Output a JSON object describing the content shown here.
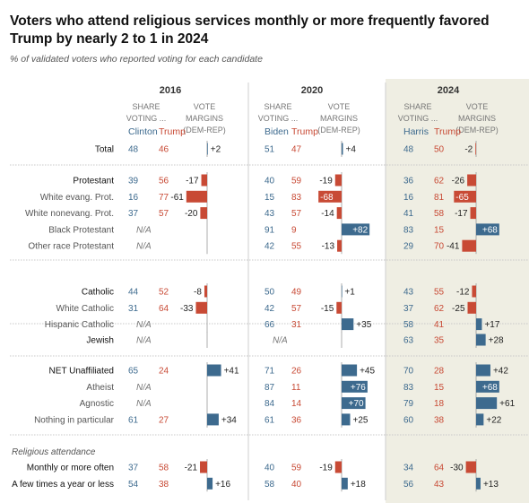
{
  "title": "Voters who attend religious services monthly or more frequently favored Trump by nearly 2 to 1 in 2024",
  "subtitle": "% of validated voters who reported voting for each candidate",
  "colors": {
    "dem": "#3d6a8e",
    "rep": "#c84a35",
    "highlight": "#efeee3",
    "text": "#333333",
    "muted": "#666666"
  },
  "chart_data": {
    "type": "table",
    "years": [
      {
        "year": "2016",
        "share_label_1": "SHARE",
        "share_label_2": "VOTING ...",
        "margin_label_1": "VOTE",
        "margin_label_2": "MARGINS",
        "margin_label_3": "(DEM-REP)",
        "dem_candidate": "Clinton",
        "rep_candidate": "Trump"
      },
      {
        "year": "2020",
        "share_label_1": "SHARE",
        "share_label_2": "VOTING ...",
        "margin_label_1": "VOTE",
        "margin_label_2": "MARGINS",
        "margin_label_3": "(DEM-REP)",
        "dem_candidate": "Biden",
        "rep_candidate": "Trump"
      },
      {
        "year": "2024",
        "share_label_1": "SHARE",
        "share_label_2": "VOTING ...",
        "margin_label_1": "VOTE",
        "margin_label_2": "MARGINS",
        "margin_label_3": "(DEM-REP)",
        "dem_candidate": "Harris",
        "rep_candidate": "Trump"
      }
    ],
    "na_label": "N/A",
    "groups": [
      {
        "rows": [
          {
            "label": "Total",
            "bold": false,
            "data": [
              {
                "dem": 48,
                "rep": 46,
                "margin": 2,
                "mlabel": "+2"
              },
              {
                "dem": 51,
                "rep": 47,
                "margin": 4,
                "mlabel": "+4"
              },
              {
                "dem": 48,
                "rep": 50,
                "margin": -2,
                "mlabel": "-2"
              }
            ]
          }
        ]
      },
      {
        "rows": [
          {
            "label": "Protestant",
            "bold": false,
            "data": [
              {
                "dem": 39,
                "rep": 56,
                "margin": -17,
                "mlabel": "-17"
              },
              {
                "dem": 40,
                "rep": 59,
                "margin": -19,
                "mlabel": "-19"
              },
              {
                "dem": 36,
                "rep": 62,
                "margin": -26,
                "mlabel": "-26"
              }
            ]
          },
          {
            "label": "White evang. Prot.",
            "bold": false,
            "data": [
              {
                "dem": 16,
                "rep": 77,
                "margin": -61,
                "mlabel": "-61"
              },
              {
                "dem": 15,
                "rep": 83,
                "margin": -68,
                "mlabel": "-68"
              },
              {
                "dem": 16,
                "rep": 81,
                "margin": -65,
                "mlabel": "-65"
              }
            ]
          },
          {
            "label": "White nonevang. Prot.",
            "bold": false,
            "data": [
              {
                "dem": 37,
                "rep": 57,
                "margin": -20,
                "mlabel": "-20"
              },
              {
                "dem": 43,
                "rep": 57,
                "margin": -14,
                "mlabel": "-14"
              },
              {
                "dem": 41,
                "rep": 58,
                "margin": -17,
                "mlabel": "-17"
              }
            ]
          },
          {
            "label": "Black Protestant",
            "bold": false,
            "data": [
              null,
              {
                "dem": 91,
                "rep": 9,
                "margin": 82,
                "mlabel": "+82"
              },
              {
                "dem": 83,
                "rep": 15,
                "margin": 68,
                "mlabel": "+68"
              }
            ]
          },
          {
            "label": "Other race Protestant",
            "bold": false,
            "data": [
              null,
              {
                "dem": 42,
                "rep": 55,
                "margin": -13,
                "mlabel": "-13"
              },
              {
                "dem": 29,
                "rep": 70,
                "margin": -41,
                "mlabel": "-41"
              }
            ]
          }
        ]
      },
      {
        "rows": [
          {
            "label": "Catholic",
            "bold": false,
            "data": [
              {
                "dem": 44,
                "rep": 52,
                "margin": -8,
                "mlabel": "-8"
              },
              {
                "dem": 50,
                "rep": 49,
                "margin": 1,
                "mlabel": "+1"
              },
              {
                "dem": 43,
                "rep": 55,
                "margin": -12,
                "mlabel": "-12"
              }
            ]
          },
          {
            "label": "White Catholic",
            "bold": false,
            "data": [
              {
                "dem": 31,
                "rep": 64,
                "margin": -33,
                "mlabel": "-33"
              },
              {
                "dem": 42,
                "rep": 57,
                "margin": -15,
                "mlabel": "-15"
              },
              {
                "dem": 37,
                "rep": 62,
                "margin": -25,
                "mlabel": "-25"
              }
            ]
          },
          {
            "label": "Hispanic Catholic",
            "bold": false,
            "data": [
              null,
              {
                "dem": 66,
                "rep": 31,
                "margin": 35,
                "mlabel": "+35"
              },
              {
                "dem": 58,
                "rep": 41,
                "margin": 17,
                "mlabel": "+17"
              }
            ]
          }
        ]
      },
      {
        "rows": [
          {
            "label": "Jewish",
            "bold": false,
            "data": [
              null,
              null,
              {
                "dem": 63,
                "rep": 35,
                "margin": 28,
                "mlabel": "+28"
              }
            ]
          }
        ]
      },
      {
        "rows": [
          {
            "label": "NET Unaffiliated",
            "bold": false,
            "data": [
              {
                "dem": 65,
                "rep": 24,
                "margin": 41,
                "mlabel": "+41"
              },
              {
                "dem": 71,
                "rep": 26,
                "margin": 45,
                "mlabel": "+45"
              },
              {
                "dem": 70,
                "rep": 28,
                "margin": 42,
                "mlabel": "+42"
              }
            ]
          },
          {
            "label": "Atheist",
            "bold": false,
            "data": [
              null,
              {
                "dem": 87,
                "rep": 11,
                "margin": 76,
                "mlabel": "+76"
              },
              {
                "dem": 83,
                "rep": 15,
                "margin": 68,
                "mlabel": "+68"
              }
            ]
          },
          {
            "label": "Agnostic",
            "bold": false,
            "data": [
              null,
              {
                "dem": 84,
                "rep": 14,
                "margin": 70,
                "mlabel": "+70"
              },
              {
                "dem": 79,
                "rep": 18,
                "margin": 61,
                "mlabel": "+61"
              }
            ]
          },
          {
            "label": "Nothing in particular",
            "bold": false,
            "data": [
              {
                "dem": 61,
                "rep": 27,
                "margin": 34,
                "mlabel": "+34"
              },
              {
                "dem": 61,
                "rep": 36,
                "margin": 25,
                "mlabel": "+25"
              },
              {
                "dem": 60,
                "rep": 38,
                "margin": 22,
                "mlabel": "+22"
              }
            ]
          }
        ]
      },
      {
        "heading": "Religious attendance",
        "rows": [
          {
            "label": "Monthly or more often",
            "bold": false,
            "data": [
              {
                "dem": 37,
                "rep": 58,
                "margin": -21,
                "mlabel": "-21"
              },
              {
                "dem": 40,
                "rep": 59,
                "margin": -19,
                "mlabel": "-19"
              },
              {
                "dem": 34,
                "rep": 64,
                "margin": -30,
                "mlabel": "-30"
              }
            ]
          },
          {
            "label": "A few times a year or less",
            "bold": false,
            "data": [
              {
                "dem": 54,
                "rep": 38,
                "margin": 16,
                "mlabel": "+16"
              },
              {
                "dem": 58,
                "rep": 40,
                "margin": 18,
                "mlabel": "+18"
              },
              {
                "dem": 56,
                "rep": 43,
                "margin": 13,
                "mlabel": "+13"
              }
            ]
          }
        ]
      }
    ]
  }
}
